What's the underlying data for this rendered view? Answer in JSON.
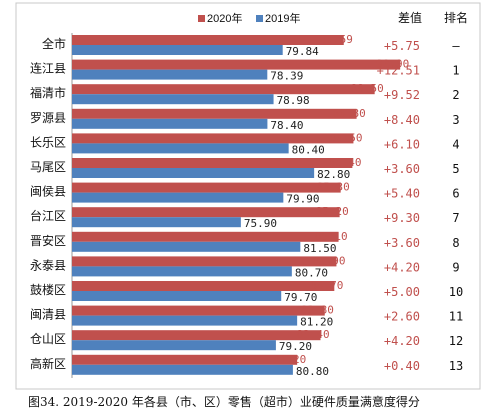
{
  "chart_data": {
    "type": "bar",
    "orientation": "horizontal",
    "categories": [
      "全市",
      "连江县",
      "福清市",
      "罗源县",
      "长乐区",
      "马尾区",
      "闽侯县",
      "台江区",
      "晋安区",
      "永泰县",
      "鼓楼区",
      "闽清县",
      "仓山区",
      "高新区"
    ],
    "series": [
      {
        "name": "2020年",
        "color": "#c0504d",
        "values": [
          85.59,
          90.9,
          88.5,
          86.8,
          86.5,
          86.4,
          85.3,
          85.2,
          85.1,
          84.9,
          84.7,
          83.8,
          83.4,
          81.2
        ]
      },
      {
        "name": "2019年",
        "color": "#4f81bd",
        "values": [
          79.84,
          78.39,
          78.98,
          78.4,
          80.4,
          82.8,
          79.9,
          75.9,
          81.5,
          80.7,
          79.7,
          81.2,
          79.2,
          80.8
        ]
      }
    ],
    "series1_labels": [
      "85.59",
      "90.90",
      "88.50",
      "86.80",
      "86.50",
      "86.40",
      "85.30",
      "85.20",
      "85.10",
      "84.90",
      "84.70",
      "83.80",
      "83.40",
      "81.20"
    ],
    "series2_labels": [
      "79.84",
      "78.39",
      "78.98",
      "78.40",
      "80.40",
      "82.80",
      "79.90",
      "75.90",
      "81.50",
      "80.70",
      "79.70",
      "81.20",
      "79.20",
      "80.80"
    ],
    "diff_header": "差值",
    "rank_header": "排名",
    "diffs": [
      "+5.75",
      "+12.51",
      "+9.52",
      "+8.40",
      "+6.10",
      "+3.60",
      "+5.40",
      "+9.30",
      "+3.60",
      "+4.20",
      "+5.00",
      "+2.60",
      "+4.20",
      "+0.40"
    ],
    "ranks": [
      "–",
      "1",
      "2",
      "3",
      "4",
      "5",
      "6",
      "7",
      "8",
      "9",
      "10",
      "11",
      "12",
      "13"
    ],
    "legend_position": "top",
    "caption": "图34.   2019-2020 年各县（市、区）零售（超市）业硬件质量满意度得分",
    "xlim": [
      60,
      92
    ]
  }
}
